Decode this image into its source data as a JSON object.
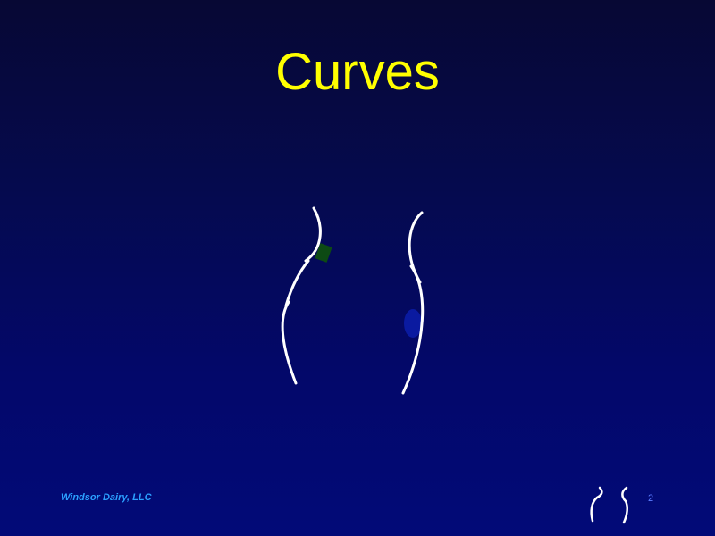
{
  "slide": {
    "title": "Curves",
    "page_number": "2"
  },
  "footer": {
    "company": "Windsor Dairy, LLC"
  },
  "figure": {
    "icon": "curved-lines-illustration",
    "stroke_color": "#ffffff",
    "accent_green": "#0d4a14",
    "accent_blue": "#0a1aa0"
  },
  "logo": {
    "icon": "curves-logo-icon",
    "stroke_color": "#ffffff"
  },
  "colors": {
    "title": "#ffff00",
    "company_text": "#2ba0ff",
    "page_number": "#5a7cff",
    "background_top": "#070834",
    "background_bottom": "#020a78"
  }
}
